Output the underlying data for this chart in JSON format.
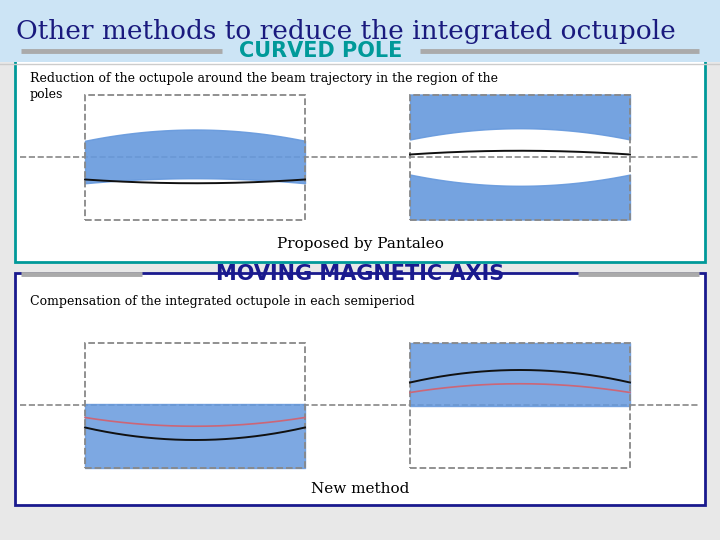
{
  "title": "Other methods to reduce the integrated octupole",
  "title_bg": "#cce4f5",
  "title_color": "#1a1a7e",
  "slide_bg": "#e8e8e8",
  "section1_label": "CURVED POLE",
  "section1_label_color": "#009999",
  "section1_text1": "Reduction of the octupole around the beam trajectory in the region of the",
  "section1_text2": "poles",
  "section1_caption": "Proposed by Pantaleo",
  "section2_label": "MOVING MAGNETIC AXIS",
  "section2_label_color": "#1a1a8e",
  "section2_text": "Compensation of the integrated octupole in each semiperiod",
  "section2_caption": "New method",
  "box1_border": "#009999",
  "box2_border": "#1a1a8e",
  "blue_fill": "#6699dd",
  "dashed_color": "#888888",
  "line_color": "#111111",
  "pink_line_color": "#cc6677",
  "label_line_color": "#aaaaaa"
}
